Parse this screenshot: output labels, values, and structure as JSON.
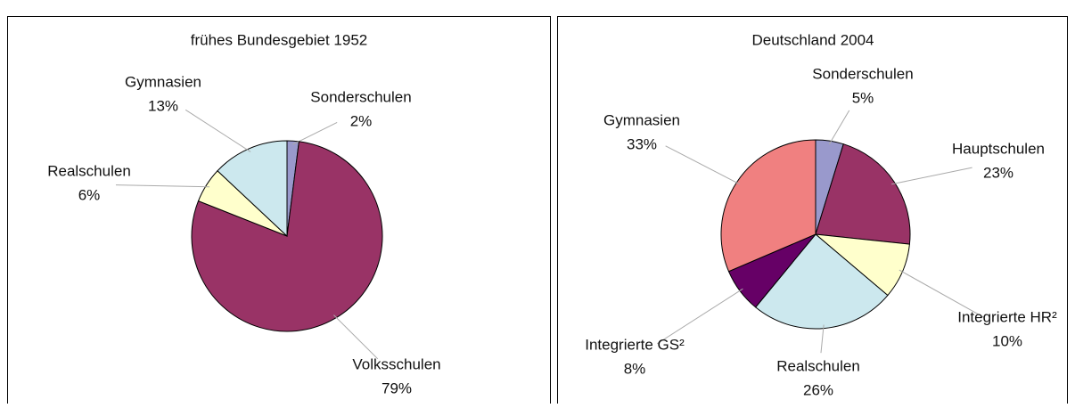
{
  "chart_data": [
    {
      "type": "pie",
      "title": "frühes Bundesgebiet 1952",
      "categories": [
        "Sonderschulen",
        "Volksschulen",
        "Realschulen",
        "Gymnasien"
      ],
      "values": [
        2,
        79,
        6,
        13
      ],
      "value_labels": [
        "2%",
        "79%",
        "6%",
        "13%"
      ],
      "colors": [
        "#9999cc",
        "#993366",
        "#ffffcc",
        "#cce8ee"
      ]
    },
    {
      "type": "pie",
      "title": "Deutschland 2004",
      "categories": [
        "Sonderschulen",
        "Hauptschulen",
        "Integrierte HR²",
        "Realschulen",
        "Integrierte GS²",
        "Gymnasien"
      ],
      "values": [
        5,
        23,
        10,
        26,
        8,
        33
      ],
      "value_labels": [
        "5%",
        "23%",
        "10%",
        "26%",
        "8%",
        "33%"
      ],
      "colors": [
        "#9999cc",
        "#993366",
        "#ffffcc",
        "#cce8ee",
        "#660066",
        "#f08080"
      ]
    }
  ]
}
